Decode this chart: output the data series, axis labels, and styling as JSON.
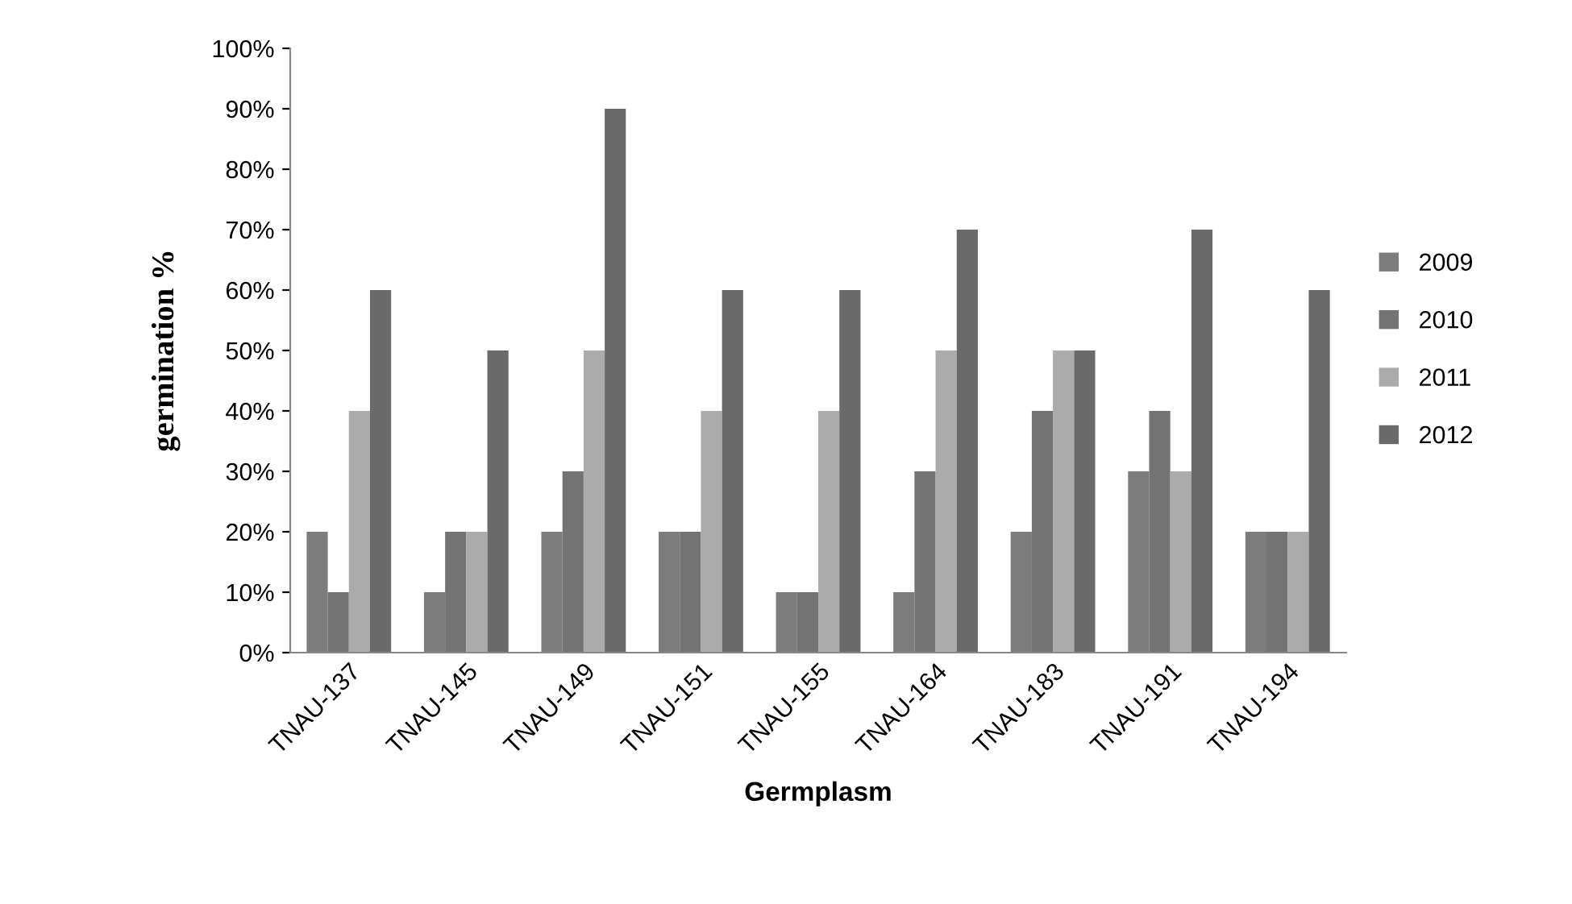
{
  "chart_data": {
    "type": "bar",
    "xlabel": "Germplasm",
    "ylabel": "germination %",
    "categories": [
      "TNAU-137",
      "TNAU-145",
      "TNAU-149",
      "TNAU-151",
      "TNAU-155",
      "TNAU-164",
      "TNAU-183",
      "TNAU-191",
      "TNAU-194"
    ],
    "series": [
      {
        "name": "2009",
        "color": "#7c7c7c",
        "values": [
          20,
          10,
          20,
          20,
          10,
          10,
          20,
          30,
          20
        ]
      },
      {
        "name": "2010",
        "color": "#737373",
        "values": [
          10,
          20,
          30,
          20,
          10,
          30,
          40,
          40,
          20
        ]
      },
      {
        "name": "2011",
        "color": "#ababab",
        "values": [
          40,
          20,
          50,
          40,
          40,
          50,
          50,
          30,
          20
        ]
      },
      {
        "name": "2012",
        "color": "#6a6a6a",
        "values": [
          60,
          50,
          90,
          60,
          60,
          70,
          50,
          70,
          60
        ]
      }
    ],
    "ylim": [
      0,
      100
    ],
    "yticks": [
      {
        "value": 0,
        "label": "0%"
      },
      {
        "value": 10,
        "label": "10%"
      },
      {
        "value": 20,
        "label": "20%"
      },
      {
        "value": 30,
        "label": "30%"
      },
      {
        "value": 40,
        "label": "40%"
      },
      {
        "value": 50,
        "label": "50%"
      },
      {
        "value": 60,
        "label": "60%"
      },
      {
        "value": 70,
        "label": "70%"
      },
      {
        "value": 80,
        "label": "80%"
      },
      {
        "value": 90,
        "label": "90%"
      },
      {
        "value": 100,
        "label": "100%"
      }
    ],
    "grid": false,
    "legend": "right"
  }
}
